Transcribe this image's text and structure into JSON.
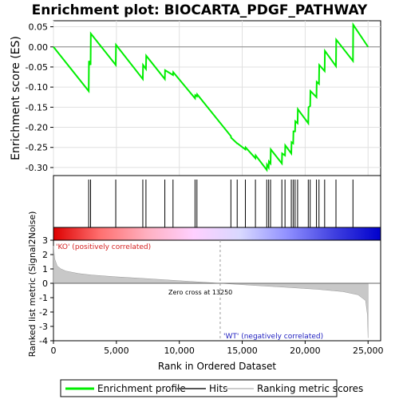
{
  "title": "Enrichment plot: BIOCARTA_PDGF_PATHWAY",
  "chart_data": {
    "type": "line",
    "title": "Enrichment plot: BIOCARTA_PDGF_PATHWAY",
    "es_panel": {
      "ylabel": "Enrichment score (ES)",
      "ylim": [
        -0.32,
        0.065
      ],
      "yticks": [
        "0.05",
        "0.00",
        "-0.05",
        "-0.10",
        "-0.15",
        "-0.20",
        "-0.25",
        "-0.30"
      ],
      "ytick_values": [
        0.05,
        0.0,
        -0.05,
        -0.1,
        -0.15,
        -0.2,
        -0.25,
        -0.3
      ],
      "grid": true,
      "series": [
        {
          "name": "Enrichment profile",
          "color": "#00ee00",
          "x": [
            0,
            2800,
            2820,
            2950,
            2970,
            4950,
            4970,
            7100,
            7120,
            7350,
            7370,
            8850,
            8870,
            9500,
            9520,
            11250,
            11270,
            11400,
            11420,
            14100,
            14120,
            14600,
            14620,
            15250,
            15270,
            16050,
            16070,
            16950,
            16970,
            17100,
            17120,
            17250,
            17270,
            18150,
            18170,
            18400,
            18420,
            18900,
            18920,
            19050,
            19070,
            19200,
            19220,
            19400,
            19420,
            20250,
            20270,
            20400,
            20420,
            20900,
            20920,
            21100,
            21120,
            21550,
            21570,
            22450,
            22470,
            23800,
            23820,
            25000
          ],
          "y": [
            0.0,
            -0.11,
            -0.035,
            -0.045,
            0.033,
            -0.045,
            0.005,
            -0.08,
            -0.045,
            -0.055,
            -0.022,
            -0.08,
            -0.058,
            -0.07,
            -0.063,
            -0.128,
            -0.12,
            -0.123,
            -0.118,
            -0.222,
            -0.226,
            -0.24,
            -0.24,
            -0.255,
            -0.25,
            -0.277,
            -0.27,
            -0.306,
            -0.293,
            -0.3,
            -0.285,
            -0.29,
            -0.255,
            -0.29,
            -0.265,
            -0.27,
            -0.245,
            -0.265,
            -0.237,
            -0.24,
            -0.21,
            -0.21,
            -0.185,
            -0.19,
            -0.155,
            -0.19,
            -0.15,
            -0.147,
            -0.11,
            -0.125,
            -0.087,
            -0.092,
            -0.045,
            -0.06,
            -0.01,
            -0.048,
            0.018,
            -0.035,
            0.055,
            0.0
          ]
        }
      ]
    },
    "hits": [
      2800,
      2950,
      4950,
      7100,
      7350,
      8850,
      9500,
      11250,
      11400,
      14100,
      14600,
      15250,
      16050,
      16950,
      17100,
      17250,
      18150,
      18400,
      18900,
      19050,
      19200,
      19400,
      20250,
      20400,
      20900,
      21100,
      21550,
      22450,
      23800
    ],
    "ranked_metric_panel": {
      "ylabel": "Ranked list metric (Signal2Noise)",
      "xlabel": "Rank in Ordered Dataset",
      "ylim": [
        -4,
        3
      ],
      "yticks": [
        "3",
        "2",
        "1",
        "0",
        "-1",
        "-2",
        "-3",
        "-4"
      ],
      "ytick_values": [
        3,
        2,
        1,
        0,
        -1,
        -2,
        -3,
        -4
      ],
      "xlim": [
        0,
        26000
      ],
      "xticks": [
        "0",
        "5,000",
        "10,000",
        "15,000",
        "20,000",
        "25,000"
      ],
      "xtick_values": [
        0,
        5000,
        10000,
        15000,
        20000,
        25000
      ],
      "curve_x": [
        0,
        100,
        300,
        600,
        1000,
        2000,
        3000,
        5000,
        7500,
        10000,
        13250,
        16000,
        18500,
        21000,
        23000,
        24200,
        24800,
        24950,
        25000
      ],
      "curve_y": [
        2.6,
        1.7,
        1.2,
        1.0,
        0.85,
        0.68,
        0.58,
        0.45,
        0.32,
        0.18,
        0.0,
        -0.15,
        -0.28,
        -0.42,
        -0.58,
        -0.8,
        -1.2,
        -2.2,
        -3.8
      ],
      "color": "#999999",
      "zero_cross_label": "Zero cross at 13250",
      "zero_cross": 13250,
      "pos_label": "'KO' (positively correlated)",
      "neg_label": "'WT' (negatively correlated)"
    },
    "colorbar": {
      "stops": [
        "#dd0000",
        "#ff7070",
        "#ffb0c0",
        "#ffd0ff",
        "#d8d8ff",
        "#9090ff",
        "#4040e0",
        "#0000cc"
      ]
    },
    "legend": {
      "placement": "bottom",
      "items": [
        {
          "label": "Enrichment profile",
          "color": "#00ee00",
          "kind": "line"
        },
        {
          "label": "Hits",
          "color": "#555555",
          "kind": "line"
        },
        {
          "label": "Ranking metric scores",
          "color": "#cccccc",
          "kind": "line"
        }
      ]
    }
  }
}
